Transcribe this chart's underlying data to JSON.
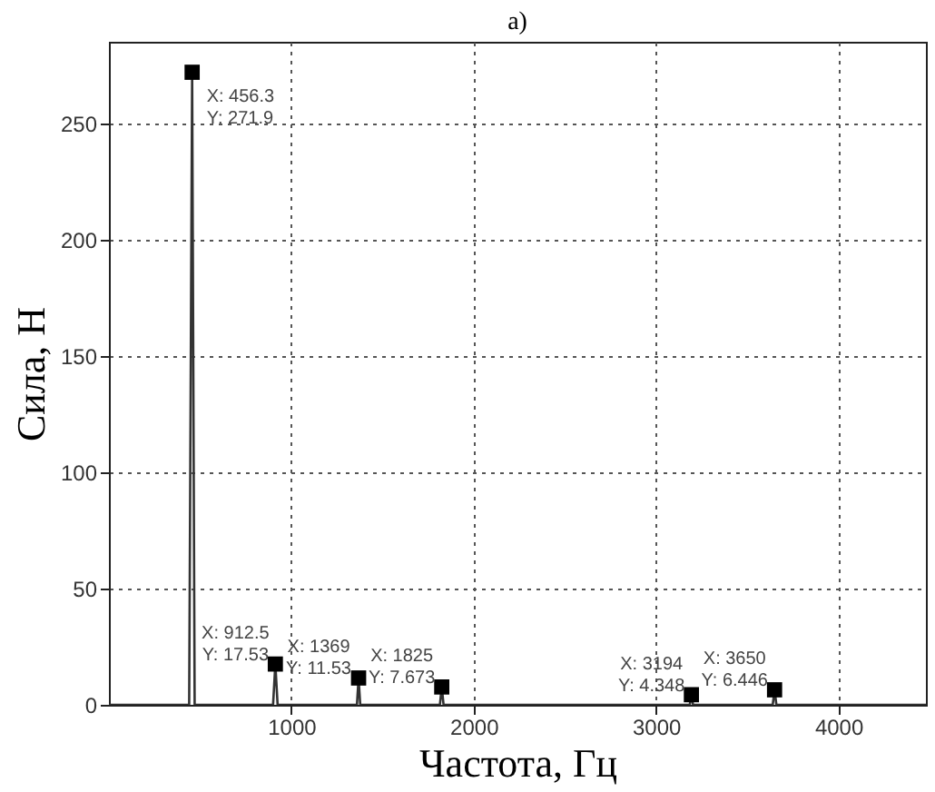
{
  "chart_data": {
    "type": "line",
    "title": "а)",
    "xlabel": "Частота, Гц",
    "ylabel": "Сила, Н",
    "xlim": [
      0,
      4480
    ],
    "xticks": [
      1000,
      2000,
      3000,
      4000
    ],
    "ylim": [
      0,
      285
    ],
    "yticks": [
      0,
      50,
      100,
      150,
      200,
      250
    ],
    "grid": true,
    "series": [
      {
        "color": "#333333",
        "marker": "none",
        "x": [
          0,
          440,
          456.3,
          470,
          900,
          912.5,
          925,
          1360,
          1369,
          1378,
          1815,
          1825,
          1835,
          3185,
          3194,
          3203,
          3640,
          3650,
          3660,
          4480
        ],
        "values": [
          0,
          0,
          271.9,
          0,
          0,
          17.53,
          0,
          0,
          11.53,
          0,
          0,
          7.673,
          0,
          0,
          4.348,
          0,
          0,
          6.446,
          0,
          0
        ]
      },
      {
        "type": "scatter",
        "color": "#000000",
        "marker": "square",
        "x": [
          456.3,
          912.5,
          1369,
          1825,
          3194,
          3650
        ],
        "values": [
          271.9,
          17.53,
          11.53,
          7.673,
          4.348,
          6.446
        ]
      }
    ],
    "annotations": [
      {
        "text": "X: 456.3\nY: 271.9",
        "x": 456.3,
        "y": 271.9
      },
      {
        "text": "X: 912.5\nY: 17.53",
        "x": 912.5,
        "y": 17.53
      },
      {
        "text": "X: 1369\nY: 11.53",
        "x": 1369,
        "y": 11.53
      },
      {
        "text": "X: 1825\nY: 7.673",
        "x": 1825,
        "y": 7.673
      },
      {
        "text": "X: 3194\nY: 4.348",
        "x": 3194,
        "y": 4.348
      },
      {
        "text": "X: 3650\nY: 6.446",
        "x": 3650,
        "y": 6.446
      }
    ]
  }
}
